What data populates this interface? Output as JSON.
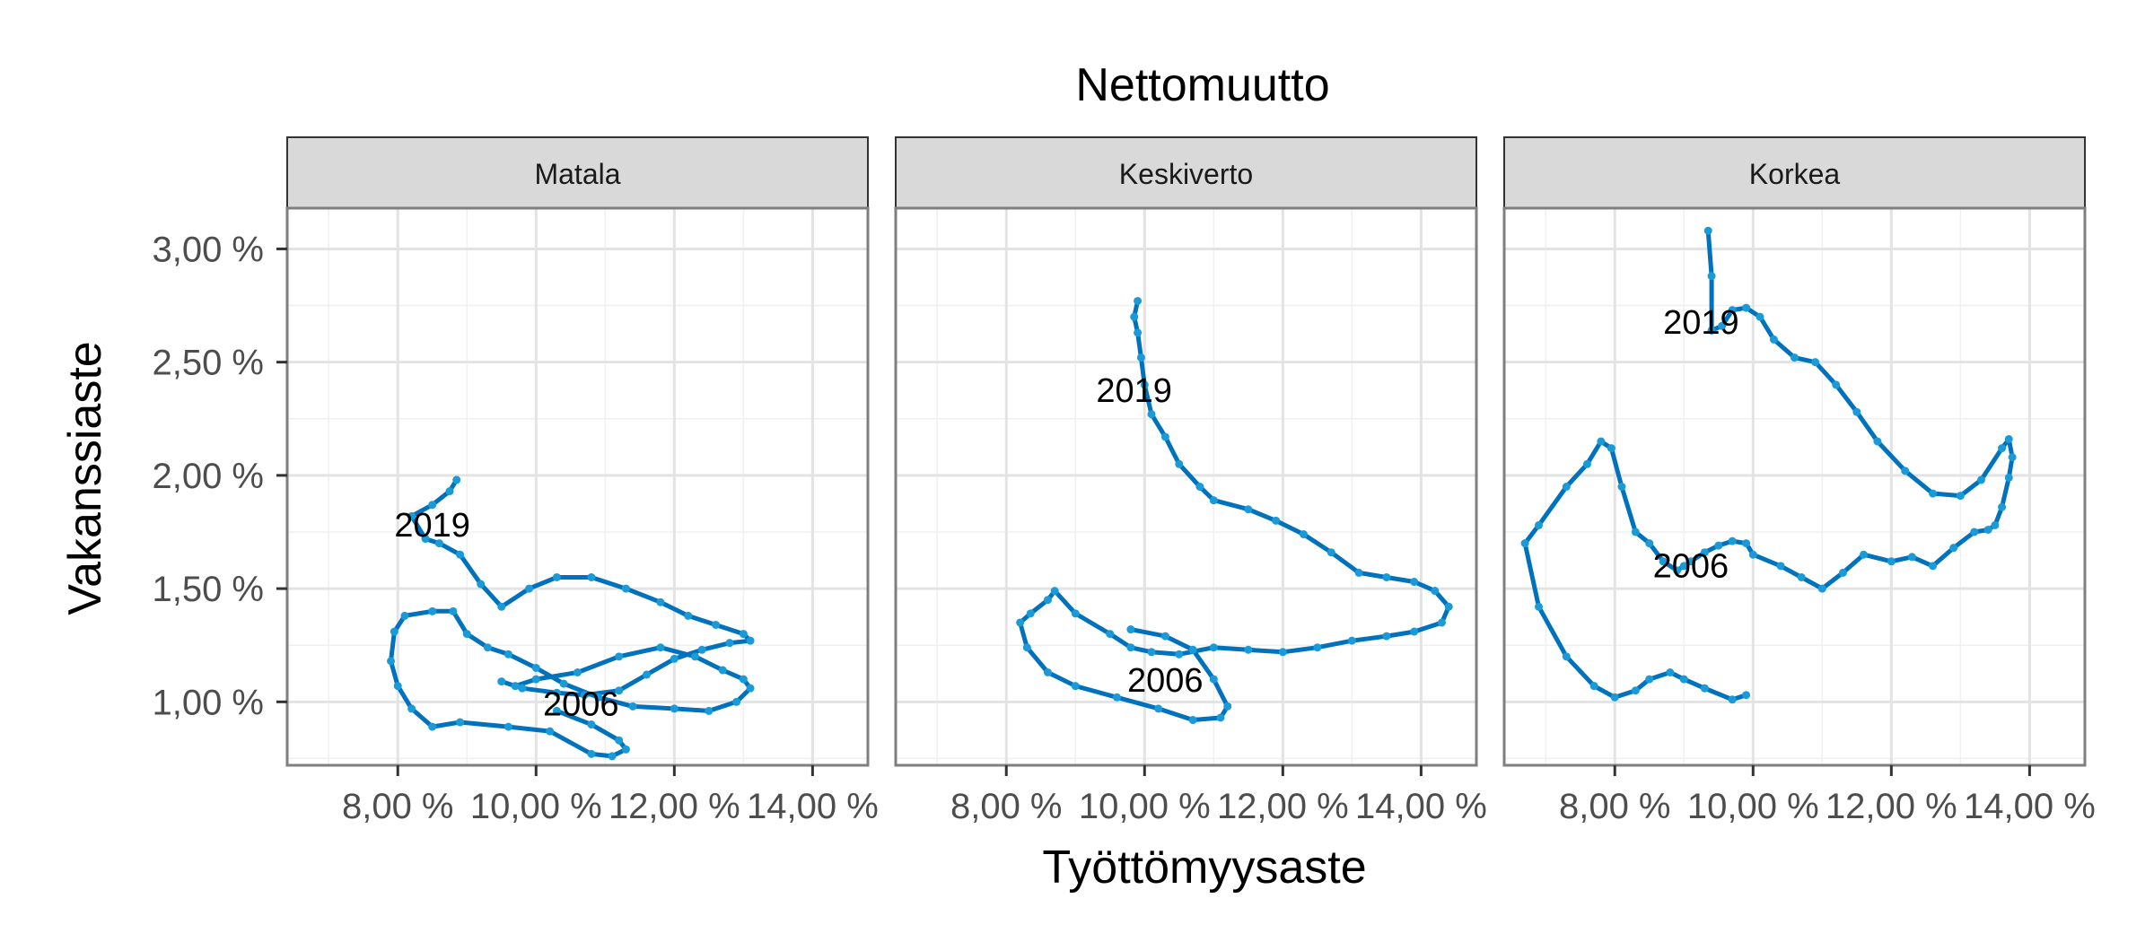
{
  "chart_data": {
    "type": "line",
    "title": "Nettomuutto",
    "xlabel": "Työttömyysaste",
    "ylabel": "Vakanssiaste",
    "xlim": [
      6.4,
      14.8
    ],
    "ylim": [
      0.72,
      3.18
    ],
    "x_ticks": [
      8,
      10,
      12,
      14
    ],
    "x_tick_labels": [
      "8,00 %",
      "10,00 %",
      "12,00 %",
      "14,00 %"
    ],
    "y_ticks": [
      1.0,
      1.5,
      2.0,
      2.5,
      3.0
    ],
    "y_tick_labels": [
      "1,00 %",
      "1,50 %",
      "2,00 %",
      "2,50 %",
      "3,00 %"
    ],
    "grid": true,
    "line_color": "#0072bd",
    "point_color": "#1a9bd7",
    "panels": [
      {
        "name": "Matala",
        "x": [
          10.3,
          10.8,
          11.2,
          11.3,
          11.1,
          10.8,
          10.2,
          9.6,
          8.9,
          8.5,
          8.2,
          8.0,
          7.9,
          7.95,
          8.1,
          8.5,
          8.8,
          9.0,
          9.3,
          9.6,
          10.0,
          10.4,
          10.9,
          11.4,
          12.0,
          12.5,
          12.9,
          13.1,
          13.0,
          12.7,
          12.3,
          11.8,
          11.2,
          10.6,
          10.0,
          9.7,
          9.5,
          9.8,
          10.3,
          10.7,
          11.2,
          11.6,
          12.0,
          12.4,
          12.8,
          13.1,
          13.0,
          12.6,
          12.2,
          11.8,
          11.3,
          10.8,
          10.3,
          9.9,
          9.5,
          9.2,
          8.9,
          8.6,
          8.4,
          8.2,
          8.5,
          8.75,
          8.85
        ],
        "y": [
          0.96,
          0.9,
          0.83,
          0.79,
          0.76,
          0.77,
          0.87,
          0.89,
          0.91,
          0.89,
          0.97,
          1.07,
          1.18,
          1.31,
          1.38,
          1.4,
          1.4,
          1.3,
          1.24,
          1.21,
          1.15,
          1.08,
          1.02,
          0.98,
          0.97,
          0.96,
          1.0,
          1.06,
          1.1,
          1.14,
          1.2,
          1.24,
          1.2,
          1.13,
          1.1,
          1.07,
          1.09,
          1.06,
          1.04,
          1.03,
          1.05,
          1.12,
          1.19,
          1.23,
          1.26,
          1.27,
          1.3,
          1.34,
          1.38,
          1.44,
          1.5,
          1.55,
          1.55,
          1.5,
          1.42,
          1.52,
          1.65,
          1.7,
          1.72,
          1.82,
          1.87,
          1.93,
          1.98
        ],
        "label_start": "2006",
        "label_end": "2019",
        "label_start_at": [
          10.1,
          0.995
        ],
        "label_end_at": [
          7.95,
          1.785
        ]
      },
      {
        "name": "Keskiverto",
        "x": [
          9.8,
          10.3,
          10.7,
          11.0,
          11.2,
          11.1,
          10.7,
          10.2,
          9.6,
          9.0,
          8.6,
          8.3,
          8.2,
          8.35,
          8.6,
          8.7,
          9.0,
          9.5,
          9.8,
          10.1,
          10.5,
          11.0,
          11.5,
          12.0,
          12.5,
          13.0,
          13.5,
          13.9,
          14.3,
          14.4,
          14.2,
          13.9,
          13.5,
          13.1,
          12.7,
          12.3,
          11.9,
          11.5,
          11.0,
          10.8,
          10.5,
          10.3,
          10.1,
          10.0,
          9.95,
          9.9,
          9.85,
          9.9
        ],
        "y": [
          1.32,
          1.29,
          1.23,
          1.1,
          0.98,
          0.93,
          0.92,
          0.97,
          1.02,
          1.07,
          1.13,
          1.24,
          1.35,
          1.39,
          1.45,
          1.49,
          1.39,
          1.3,
          1.24,
          1.22,
          1.21,
          1.24,
          1.23,
          1.22,
          1.24,
          1.27,
          1.29,
          1.31,
          1.35,
          1.42,
          1.49,
          1.53,
          1.55,
          1.57,
          1.66,
          1.74,
          1.8,
          1.85,
          1.89,
          1.95,
          2.05,
          2.17,
          2.27,
          2.4,
          2.52,
          2.63,
          2.7,
          2.77
        ],
        "label_start": "2006",
        "label_end": "2019",
        "label_start_at": [
          9.75,
          1.1
        ],
        "label_end_at": [
          9.3,
          2.38
        ]
      },
      {
        "name": "Korkea",
        "x": [
          9.9,
          9.7,
          9.3,
          9.0,
          8.8,
          8.5,
          8.3,
          8.0,
          7.7,
          7.3,
          6.9,
          6.7,
          6.9,
          7.3,
          7.6,
          7.8,
          7.95,
          8.1,
          8.3,
          8.5,
          8.7,
          8.9,
          9.0,
          9.1,
          9.3,
          9.5,
          9.7,
          9.9,
          10.0,
          10.4,
          10.7,
          11.0,
          11.3,
          11.6,
          12.0,
          12.3,
          12.6,
          12.9,
          13.2,
          13.4,
          13.5,
          13.6,
          13.7,
          13.75,
          13.7,
          13.6,
          13.3,
          13.0,
          12.6,
          12.2,
          11.8,
          11.5,
          11.2,
          10.9,
          10.6,
          10.3,
          10.1,
          9.9,
          9.7,
          9.55,
          9.4,
          9.4,
          9.35
        ],
        "y": [
          1.03,
          1.01,
          1.06,
          1.1,
          1.13,
          1.1,
          1.05,
          1.02,
          1.07,
          1.2,
          1.42,
          1.7,
          1.78,
          1.95,
          2.05,
          2.15,
          2.12,
          1.95,
          1.75,
          1.7,
          1.62,
          1.58,
          1.6,
          1.62,
          1.66,
          1.69,
          1.71,
          1.7,
          1.65,
          1.6,
          1.55,
          1.5,
          1.57,
          1.65,
          1.62,
          1.64,
          1.6,
          1.68,
          1.75,
          1.76,
          1.78,
          1.86,
          1.99,
          2.08,
          2.16,
          2.12,
          1.98,
          1.91,
          1.92,
          2.02,
          2.15,
          2.28,
          2.4,
          2.5,
          2.52,
          2.6,
          2.7,
          2.74,
          2.73,
          2.66,
          2.64,
          2.88,
          3.08
        ],
        "label_start": "2006",
        "label_end": "2019",
        "label_start_at": [
          8.55,
          1.605
        ],
        "label_end_at": [
          8.7,
          2.68
        ]
      }
    ]
  }
}
